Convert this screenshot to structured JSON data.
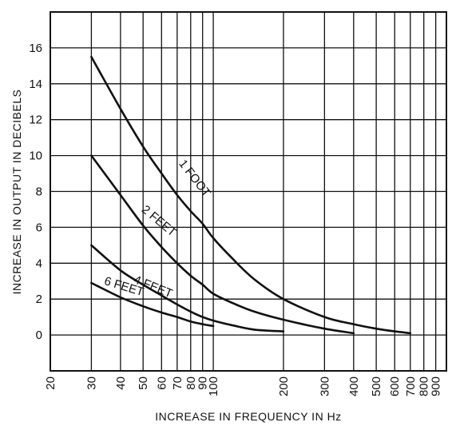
{
  "chart_data": {
    "type": "line",
    "title": "",
    "xlabel": "INCREASE IN FREQUENCY IN Hz",
    "ylabel": "INCREASE IN OUTPUT IN DECIBELS",
    "x_scale": "log",
    "xlim": [
      20,
      1000
    ],
    "ylim": [
      -2,
      18
    ],
    "grid": true,
    "x_ticks": [
      20,
      30,
      40,
      50,
      60,
      70,
      80,
      90,
      100,
      200,
      300,
      400,
      500,
      600,
      700,
      800,
      900
    ],
    "x_tick_labels": [
      "20",
      "30",
      "40",
      "50",
      "60",
      "70",
      "80",
      "90",
      "100",
      "200",
      "300",
      "400",
      "500",
      "600",
      "700",
      "800",
      "900"
    ],
    "y_ticks": [
      0,
      2,
      4,
      6,
      8,
      10,
      12,
      14,
      16
    ],
    "y_tick_labels": [
      "0",
      "2",
      "4",
      "6",
      "8",
      "10",
      "12",
      "14",
      "16"
    ],
    "series": [
      {
        "name": "1 FOOT",
        "x": [
          30,
          40,
          50,
          60,
          70,
          80,
          90,
          100,
          120,
          150,
          200,
          300,
          400,
          500,
          600,
          700
        ],
        "y": [
          15.5,
          12.6,
          10.5,
          9.0,
          7.8,
          6.9,
          6.2,
          5.4,
          4.3,
          3.1,
          2.0,
          1.0,
          0.6,
          0.35,
          0.2,
          0.1
        ]
      },
      {
        "name": "2 FEET",
        "x": [
          30,
          40,
          50,
          60,
          70,
          80,
          90,
          100,
          120,
          150,
          200,
          300,
          400
        ],
        "y": [
          10.0,
          7.8,
          6.1,
          4.9,
          4.0,
          3.3,
          2.8,
          2.3,
          1.8,
          1.3,
          0.85,
          0.35,
          0.1
        ]
      },
      {
        "name": "4 FEET",
        "x": [
          30,
          40,
          50,
          60,
          70,
          80,
          90,
          100,
          120,
          150,
          200
        ],
        "y": [
          5.0,
          3.6,
          2.8,
          2.2,
          1.7,
          1.3,
          1.0,
          0.8,
          0.55,
          0.3,
          0.2
        ]
      },
      {
        "name": "6 FEET",
        "x": [
          30,
          40,
          50,
          60,
          70,
          80,
          90,
          100
        ],
        "y": [
          2.9,
          2.1,
          1.6,
          1.25,
          1.0,
          0.75,
          0.6,
          0.5
        ]
      }
    ]
  }
}
